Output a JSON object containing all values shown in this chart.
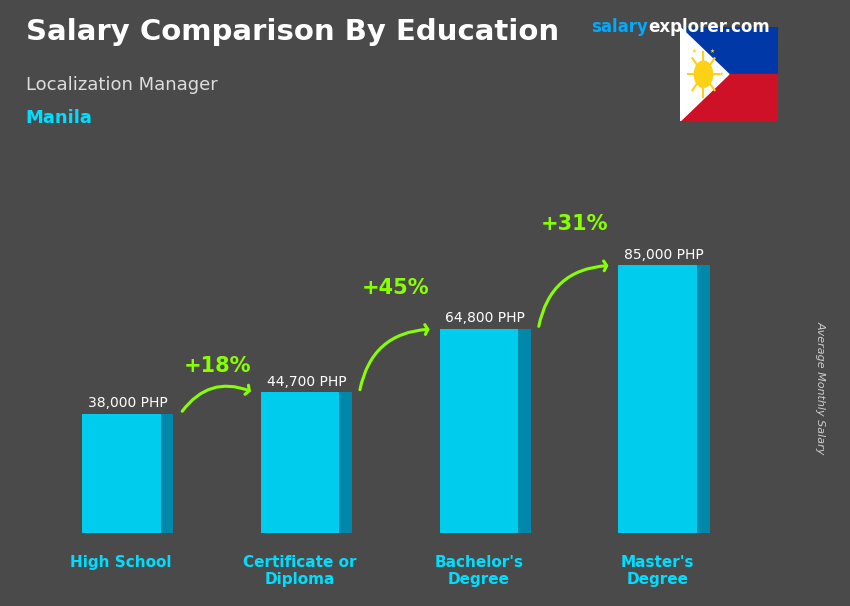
{
  "title": "Salary Comparison By Education",
  "subtitle": "Localization Manager",
  "city": "Manila",
  "ylabel": "Average Monthly Salary",
  "categories": [
    "High School",
    "Certificate or\nDiploma",
    "Bachelor's\nDegree",
    "Master's\nDegree"
  ],
  "values": [
    38000,
    44700,
    64800,
    85000
  ],
  "value_labels": [
    "38,000 PHP",
    "44,700 PHP",
    "64,800 PHP",
    "85,000 PHP"
  ],
  "pct_changes": [
    "+18%",
    "+45%",
    "+31%"
  ],
  "bar_color_face": "#00CCEE",
  "bar_color_dark": "#0088AA",
  "bar_color_top": "#55DDFF",
  "bg_color": "#4a4a4a",
  "title_color": "#FFFFFF",
  "subtitle_color": "#DDDDDD",
  "city_color": "#00DDFF",
  "watermark_salary_color": "#00AAFF",
  "watermark_explorer_color": "#FFFFFF",
  "ylabel_color": "#CCCCCC",
  "value_label_color": "#FFFFFF",
  "pct_color": "#88FF00",
  "arrow_color": "#88FF00",
  "tick_label_color": "#00DDFF",
  "ylim": [
    0,
    100000
  ],
  "figsize": [
    8.5,
    6.06
  ],
  "dpi": 100
}
